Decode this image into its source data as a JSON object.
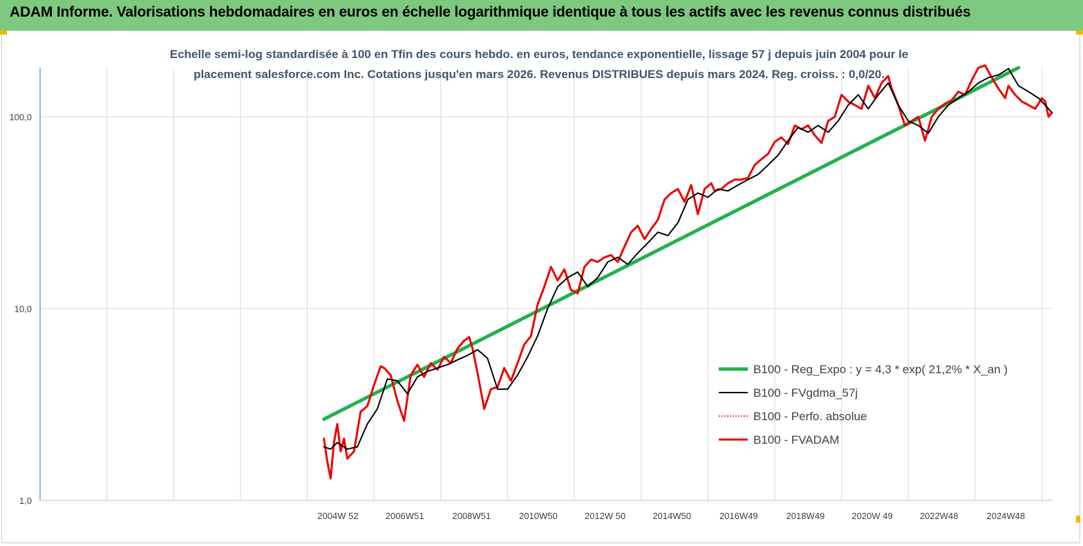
{
  "header": {
    "title": "ADAM Informe. Valorisations hebdomadaires en euros en échelle logarithmique identique à tous les actifs avec les revenus connus distribués"
  },
  "chart_data": {
    "type": "line",
    "title": "",
    "subtitle_lines": [
      "Echelle semi-log standardisée à 100 en Tfin des cours hebdo. en euros, tendance exponentielle, lissage 57 j depuis juin 2004 pour le",
      "placement salesforce.com Inc. Cotations jusqu'en mars 2026. Revenus DISTRIBUES depuis mars 2024. Reg. croiss. : 0,0/20."
    ],
    "xlabel": "",
    "ylabel": "",
    "y_scale": "log",
    "ylim": [
      1,
      180
    ],
    "y_ticks": [
      1,
      10,
      100
    ],
    "y_tick_labels": [
      "1,0",
      "10,0",
      "100,0"
    ],
    "xlim": [
      1996.0,
      2026.3
    ],
    "x_ticks": [
      1996.0,
      1998.0,
      2000.0,
      2002.0,
      2004.0,
      2006.0,
      2008.0,
      2010.0,
      2012.0,
      2014.0,
      2016.0,
      2018.0,
      2020.0,
      2022.0,
      2024.0,
      2026.0
    ],
    "x_tick_labels": [
      "2004W 52",
      "2006W51",
      "2008W51",
      "2010W50",
      "2012W 50",
      "2014W50",
      "2016W49",
      "2018W49",
      "2020W 49",
      "2022W48",
      "2024W48"
    ],
    "x_label_positions": [
      2004.92,
      2006.92,
      2008.92,
      2010.92,
      2012.92,
      2014.92,
      2016.92,
      2018.92,
      2020.92,
      2022.92,
      2024.92
    ],
    "grid": true,
    "legend_position": "right",
    "series": [
      {
        "name": "B100 - Reg_Expo : y = 4,3 * exp( 21,2% *  X_an )",
        "color": "#22b14c",
        "x": [
          2004.5,
          2025.3
        ],
        "values": [
          2.65,
          180
        ]
      },
      {
        "name": "B100 - FVgdma_57j",
        "color": "#000000",
        "x": [
          2004.5,
          2004.7,
          2004.9,
          2005.2,
          2005.5,
          2005.8,
          2006.1,
          2006.4,
          2006.7,
          2007.0,
          2007.3,
          2007.6,
          2007.9,
          2008.2,
          2008.5,
          2008.8,
          2009.1,
          2009.4,
          2009.7,
          2010.0,
          2010.3,
          2010.6,
          2010.9,
          2011.2,
          2011.5,
          2011.8,
          2012.1,
          2012.4,
          2012.7,
          2013.0,
          2013.3,
          2013.6,
          2013.9,
          2014.2,
          2014.5,
          2014.8,
          2015.1,
          2015.4,
          2015.7,
          2016.0,
          2016.3,
          2016.6,
          2016.9,
          2017.2,
          2017.5,
          2017.8,
          2018.1,
          2018.4,
          2018.7,
          2019.0,
          2019.3,
          2019.6,
          2019.9,
          2020.2,
          2020.5,
          2020.8,
          2021.1,
          2021.4,
          2021.7,
          2022.0,
          2022.3,
          2022.6,
          2022.9,
          2023.2,
          2023.5,
          2023.8,
          2024.1,
          2024.4,
          2024.7,
          2025.0,
          2025.3,
          2025.6,
          2025.9,
          2026.1,
          2026.3
        ],
        "values": [
          1.9,
          1.85,
          2.0,
          1.85,
          1.9,
          2.5,
          3.0,
          4.3,
          4.2,
          3.6,
          4.4,
          4.7,
          4.9,
          5.1,
          5.4,
          5.7,
          6.1,
          5.5,
          3.8,
          3.8,
          4.5,
          5.6,
          7.2,
          10.0,
          13.0,
          14.5,
          15.5,
          13.0,
          14.5,
          17.5,
          18.5,
          17.0,
          19.5,
          22.0,
          25.0,
          24.0,
          28.0,
          37.0,
          40.0,
          38.0,
          42.0,
          41.0,
          44.0,
          47.0,
          50.0,
          56.0,
          63.0,
          75.0,
          88.0,
          83.0,
          90.0,
          83.0,
          95.0,
          115.0,
          130.0,
          110.0,
          130.0,
          150.0,
          115.0,
          95.0,
          90.0,
          82.0,
          100.0,
          115.0,
          125.0,
          135.0,
          150.0,
          160.0,
          165.0,
          178.0,
          145.0,
          135.0,
          125.0,
          115.0,
          105.0
        ]
      },
      {
        "name": "B100 - Perfo. absolue",
        "color": "#ff0000",
        "x": [],
        "values": []
      },
      {
        "name": "B100 - FVADAM",
        "color": "#ee0000",
        "x": [
          2004.5,
          2004.6,
          2004.7,
          2004.8,
          2004.9,
          2005.0,
          2005.1,
          2005.2,
          2005.4,
          2005.6,
          2005.8,
          2006.0,
          2006.2,
          2006.3,
          2006.5,
          2006.7,
          2006.9,
          2007.1,
          2007.3,
          2007.5,
          2007.7,
          2007.9,
          2008.1,
          2008.3,
          2008.5,
          2008.7,
          2008.85,
          2008.95,
          2009.1,
          2009.3,
          2009.5,
          2009.7,
          2009.9,
          2010.1,
          2010.3,
          2010.5,
          2010.7,
          2010.9,
          2011.1,
          2011.3,
          2011.5,
          2011.7,
          2011.9,
          2012.1,
          2012.3,
          2012.5,
          2012.7,
          2012.9,
          2013.1,
          2013.3,
          2013.5,
          2013.7,
          2013.9,
          2014.1,
          2014.3,
          2014.5,
          2014.7,
          2014.9,
          2015.1,
          2015.3,
          2015.5,
          2015.7,
          2015.9,
          2016.1,
          2016.2,
          2016.4,
          2016.6,
          2016.8,
          2017.0,
          2017.2,
          2017.4,
          2017.6,
          2017.8,
          2018.0,
          2018.2,
          2018.4,
          2018.6,
          2018.8,
          2019.0,
          2019.2,
          2019.4,
          2019.6,
          2019.8,
          2020.0,
          2020.2,
          2020.4,
          2020.6,
          2020.8,
          2021.0,
          2021.2,
          2021.4,
          2021.5,
          2021.7,
          2021.9,
          2022.1,
          2022.3,
          2022.5,
          2022.7,
          2022.9,
          2023.1,
          2023.3,
          2023.5,
          2023.7,
          2023.9,
          2024.1,
          2024.3,
          2024.5,
          2024.7,
          2024.9,
          2025.0,
          2025.2,
          2025.4,
          2025.6,
          2025.8,
          2026.0,
          2026.1,
          2026.2,
          2026.3
        ],
        "values": [
          2.1,
          1.6,
          1.3,
          2.0,
          2.5,
          1.8,
          2.1,
          1.65,
          1.8,
          2.9,
          3.1,
          4.0,
          5.0,
          4.9,
          4.5,
          3.3,
          2.6,
          4.5,
          5.1,
          4.4,
          5.2,
          4.8,
          5.6,
          5.2,
          6.2,
          6.8,
          7.1,
          6.2,
          4.6,
          3.0,
          3.8,
          3.9,
          4.9,
          4.2,
          5.2,
          6.5,
          7.2,
          10.5,
          13.0,
          16.5,
          14.0,
          16.0,
          12.5,
          12.0,
          16.5,
          18.0,
          17.5,
          18.5,
          19.0,
          17.5,
          21.0,
          25.0,
          27.0,
          23.0,
          26.0,
          29.0,
          37.0,
          40.0,
          42.0,
          36.0,
          44.0,
          31.0,
          42.0,
          45.0,
          41.0,
          42.0,
          45.0,
          47.0,
          47.0,
          48.0,
          56.0,
          60.0,
          64.0,
          74.0,
          78.0,
          72.0,
          90.0,
          86.0,
          90.0,
          80.0,
          73.0,
          95.0,
          100.0,
          130.0,
          120.0,
          115.0,
          110.0,
          145.0,
          125.0,
          150.0,
          163.0,
          140.0,
          115.0,
          90.0,
          95.0,
          100.0,
          75.0,
          100.0,
          110.0,
          117.0,
          122.0,
          135.0,
          130.0,
          155.0,
          180.0,
          185.0,
          160.0,
          140.0,
          125.0,
          145.0,
          130.0,
          120.0,
          115.0,
          110.0,
          125.0,
          120.0,
          100.0,
          105.0
        ]
      }
    ]
  }
}
